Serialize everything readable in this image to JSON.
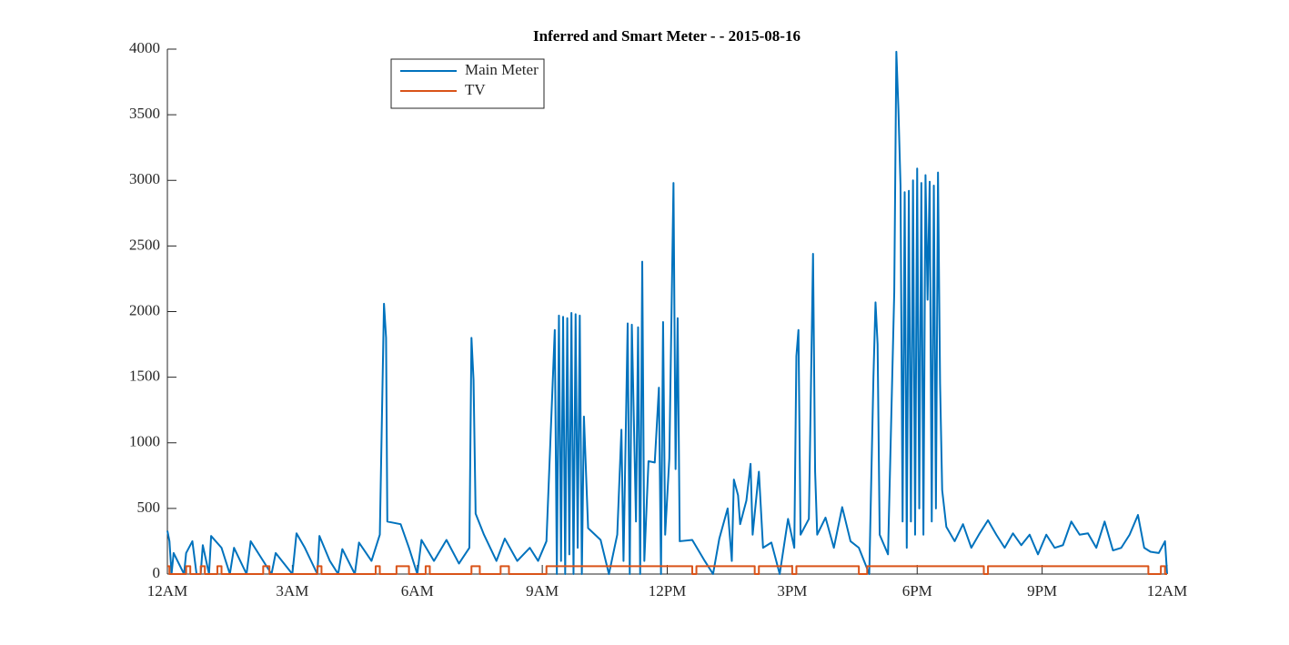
{
  "chart_data": {
    "type": "line",
    "title": "Inferred and Smart Meter -  - 2015-08-16",
    "legend": "north-west",
    "grid": false,
    "xlim": [
      0,
      24
    ],
    "xticks": [
      {
        "value": 0,
        "label": "12AM"
      },
      {
        "value": 3,
        "label": "3AM"
      },
      {
        "value": 6,
        "label": "6AM"
      },
      {
        "value": 9,
        "label": "9AM"
      },
      {
        "value": 12,
        "label": "12PM"
      },
      {
        "value": 15,
        "label": "3PM"
      },
      {
        "value": 18,
        "label": "6PM"
      },
      {
        "value": 21,
        "label": "9PM"
      },
      {
        "value": 24,
        "label": "12AM"
      }
    ],
    "ylim": [
      0,
      4000
    ],
    "yticks": [
      0,
      500,
      1000,
      1500,
      2000,
      2500,
      3000,
      3500,
      4000
    ],
    "series": [
      {
        "name": "Main Meter",
        "color": "#0072BD",
        "drawstyle": "line",
        "x": [
          0,
          0.05,
          0.1,
          0.15,
          0.4,
          0.45,
          0.6,
          0.7,
          0.8,
          0.85,
          1.0,
          1.05,
          1.3,
          1.5,
          1.6,
          1.9,
          2.0,
          2.2,
          2.5,
          2.6,
          3.0,
          3.1,
          3.3,
          3.6,
          3.65,
          3.9,
          4.1,
          4.2,
          4.5,
          4.6,
          4.9,
          5.1,
          5.2,
          5.25,
          5.28,
          5.6,
          5.8,
          6.0,
          6.1,
          6.4,
          6.7,
          7.0,
          7.25,
          7.3,
          7.35,
          7.4,
          7.6,
          7.9,
          8.1,
          8.4,
          8.7,
          8.9,
          9.1,
          9.3,
          9.35,
          9.4,
          9.45,
          9.5,
          9.55,
          9.6,
          9.65,
          9.7,
          9.75,
          9.8,
          9.85,
          9.9,
          9.95,
          10.0,
          10.1,
          10.4,
          10.6,
          10.8,
          10.9,
          10.95,
          11.05,
          11.1,
          11.15,
          11.25,
          11.3,
          11.35,
          11.4,
          11.45,
          11.55,
          11.7,
          11.8,
          11.85,
          11.9,
          11.95,
          12.05,
          12.15,
          12.2,
          12.25,
          12.3,
          12.6,
          12.9,
          13.1,
          13.25,
          13.45,
          13.55,
          13.6,
          13.7,
          13.75,
          13.9,
          14.0,
          14.05,
          14.2,
          14.3,
          14.5,
          14.7,
          14.9,
          15.05,
          15.1,
          15.15,
          15.2,
          15.4,
          15.5,
          15.55,
          15.6,
          15.8,
          16.0,
          16.2,
          16.4,
          16.6,
          16.85,
          16.95,
          17.0,
          17.05,
          17.1,
          17.3,
          17.45,
          17.5,
          17.55,
          17.6,
          17.65,
          17.7,
          17.75,
          17.8,
          17.85,
          17.9,
          17.95,
          18.0,
          18.05,
          18.1,
          18.15,
          18.2,
          18.25,
          18.3,
          18.35,
          18.4,
          18.45,
          18.5,
          18.55,
          18.6,
          18.7,
          18.9,
          19.1,
          19.3,
          19.5,
          19.7,
          19.9,
          20.1,
          20.3,
          20.5,
          20.7,
          20.9,
          21.1,
          21.3,
          21.5,
          21.7,
          21.9,
          22.1,
          22.3,
          22.5,
          22.7,
          22.9,
          23.1,
          23.3,
          23.45,
          23.6,
          23.8,
          23.95,
          24
        ],
        "values": [
          330,
          250,
          0,
          160,
          0,
          160,
          250,
          0,
          0,
          220,
          0,
          290,
          200,
          0,
          200,
          0,
          250,
          150,
          0,
          160,
          0,
          310,
          200,
          0,
          290,
          100,
          0,
          190,
          0,
          240,
          100,
          300,
          2060,
          1800,
          400,
          380,
          200,
          0,
          260,
          100,
          260,
          80,
          200,
          1800,
          1480,
          460,
          300,
          100,
          270,
          100,
          200,
          100,
          250,
          1860,
          0,
          1970,
          100,
          1960,
          0,
          1950,
          150,
          1990,
          0,
          1980,
          200,
          1970,
          0,
          1200,
          350,
          260,
          0,
          300,
          1100,
          100,
          1910,
          0,
          1900,
          400,
          1880,
          0,
          2380,
          100,
          860,
          850,
          1420,
          0,
          1920,
          300,
          880,
          2980,
          800,
          1950,
          250,
          260,
          100,
          0,
          270,
          500,
          100,
          720,
          600,
          380,
          560,
          840,
          300,
          780,
          200,
          240,
          0,
          420,
          200,
          1660,
          1860,
          300,
          420,
          2440,
          780,
          300,
          430,
          200,
          510,
          250,
          200,
          0,
          1500,
          2070,
          1750,
          300,
          150,
          2150,
          3980,
          3540,
          2960,
          400,
          2910,
          200,
          2920,
          400,
          3000,
          300,
          3090,
          500,
          2980,
          300,
          3040,
          2090,
          2990,
          400,
          2960,
          500,
          3060,
          1450,
          640,
          360,
          250,
          380,
          200,
          310,
          410,
          300,
          200,
          310,
          220,
          300,
          150,
          300,
          200,
          220,
          400,
          300,
          310,
          200,
          400,
          180,
          200,
          300,
          450,
          200,
          170,
          160,
          250,
          0
        ]
      },
      {
        "name": "TV",
        "color": "#D95319",
        "drawstyle": "steps-post",
        "x": [
          0,
          0.05,
          0.45,
          0.55,
          0.8,
          0.9,
          1.2,
          1.3,
          2.3,
          2.45,
          3.6,
          3.7,
          5.0,
          5.1,
          5.5,
          5.8,
          6.2,
          6.3,
          7.3,
          7.5,
          8.0,
          8.2,
          9.1,
          12.5,
          12.6,
          12.7,
          14.0,
          14.1,
          14.2,
          15.0,
          15.1,
          16.5,
          16.6,
          16.8,
          19.5,
          19.6,
          19.7,
          23.5,
          23.55,
          23.85,
          23.95,
          24
        ],
        "values": [
          60,
          0,
          60,
          0,
          60,
          0,
          60,
          0,
          60,
          0,
          60,
          0,
          60,
          0,
          60,
          0,
          60,
          0,
          60,
          0,
          60,
          0,
          60,
          60,
          0,
          60,
          60,
          0,
          60,
          0,
          60,
          60,
          0,
          60,
          60,
          0,
          60,
          60,
          0,
          60,
          0,
          0
        ]
      }
    ]
  }
}
